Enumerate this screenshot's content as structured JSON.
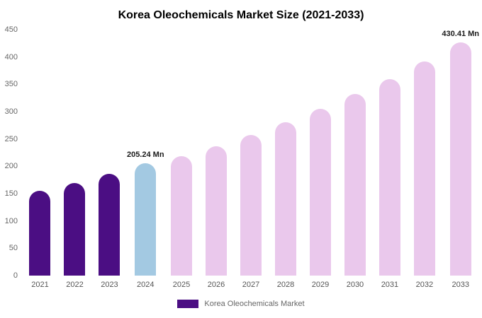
{
  "chart_data": {
    "type": "bar",
    "title": "Korea Oleochemicals Market Size (2021-2033)",
    "categories": [
      "2021",
      "2022",
      "2023",
      "2024",
      "2025",
      "2026",
      "2027",
      "2028",
      "2029",
      "2030",
      "2031",
      "2032",
      "2033"
    ],
    "values": [
      155,
      170,
      186,
      205.24,
      219,
      237,
      258,
      281,
      305,
      332,
      360,
      392,
      430.41
    ],
    "unit": "Mn",
    "annotations": [
      {
        "index": 3,
        "text": "205.24 Mn"
      },
      {
        "index": 12,
        "text": "430.41 Mn"
      }
    ],
    "bar_colors": [
      "#4B0E83",
      "#4B0E83",
      "#4B0E83",
      "#A3C9E2",
      "#EAC8EC",
      "#EAC8EC",
      "#EAC8EC",
      "#EAC8EC",
      "#EAC8EC",
      "#EAC8EC",
      "#EAC8EC",
      "#EAC8EC",
      "#EAC8EC"
    ],
    "ylim": [
      0,
      450
    ],
    "yticks": [
      0,
      50,
      100,
      150,
      200,
      250,
      300,
      350,
      400,
      450
    ],
    "grid": false,
    "xlabel": "",
    "ylabel": "",
    "legend": {
      "label": "Korea Oleochemicals Market",
      "swatch_color": "#4B0E83",
      "position": "bottom"
    }
  },
  "colors": {
    "historical_bar": "#4B0E83",
    "current_bar": "#A3C9E2",
    "forecast_bar": "#EAC8EC",
    "title_text": "#000000",
    "axis_text": "#666666",
    "background": "#ffffff"
  }
}
